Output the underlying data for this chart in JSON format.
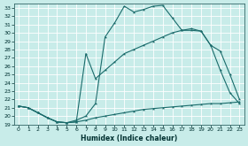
{
  "title": "",
  "xlabel": "Humidex (Indice chaleur)",
  "bg_color": "#c8ece9",
  "grid_color": "#ffffff",
  "line_color": "#1a6b6b",
  "xlim": [
    -0.5,
    23.5
  ],
  "ylim": [
    19,
    33.5
  ],
  "xticks": [
    0,
    1,
    2,
    3,
    4,
    5,
    6,
    7,
    8,
    9,
    10,
    11,
    12,
    13,
    14,
    15,
    16,
    17,
    18,
    19,
    20,
    21,
    22,
    23
  ],
  "yticks": [
    19,
    20,
    21,
    22,
    23,
    24,
    25,
    26,
    27,
    28,
    29,
    30,
    31,
    32,
    33
  ],
  "line1_x": [
    0,
    1,
    2,
    3,
    4,
    5,
    6,
    7,
    8,
    9,
    10,
    11,
    12,
    13,
    14,
    15,
    16,
    17,
    18,
    19,
    20,
    21,
    22,
    23
  ],
  "line1_y": [
    21.2,
    21.0,
    20.4,
    19.8,
    19.3,
    19.2,
    19.3,
    19.5,
    19.8,
    20.0,
    20.2,
    20.4,
    20.6,
    20.8,
    20.9,
    21.0,
    21.1,
    21.2,
    21.3,
    21.4,
    21.5,
    21.5,
    21.6,
    21.7
  ],
  "line2_x": [
    0,
    1,
    2,
    3,
    4,
    5,
    6,
    7,
    8,
    9,
    10,
    11,
    12,
    13,
    14,
    15,
    16,
    17,
    18,
    19,
    20,
    21,
    22,
    23
  ],
  "line2_y": [
    21.2,
    21.0,
    20.4,
    19.8,
    19.3,
    19.2,
    19.3,
    27.5,
    24.5,
    25.5,
    26.5,
    27.5,
    28.0,
    28.5,
    29.0,
    29.5,
    30.0,
    30.3,
    30.5,
    30.2,
    28.5,
    27.8,
    25.0,
    22.0
  ],
  "line3_x": [
    0,
    1,
    2,
    3,
    4,
    5,
    6,
    7,
    8,
    9,
    10,
    11,
    12,
    13,
    14,
    15,
    16,
    17,
    18,
    19,
    20,
    21,
    22,
    23
  ],
  "line3_y": [
    21.2,
    21.0,
    20.4,
    19.8,
    19.3,
    19.2,
    19.5,
    20.0,
    21.5,
    29.5,
    31.2,
    33.2,
    32.5,
    32.8,
    33.2,
    33.3,
    31.8,
    30.3,
    30.3,
    30.2,
    28.5,
    25.5,
    22.8,
    21.5
  ]
}
